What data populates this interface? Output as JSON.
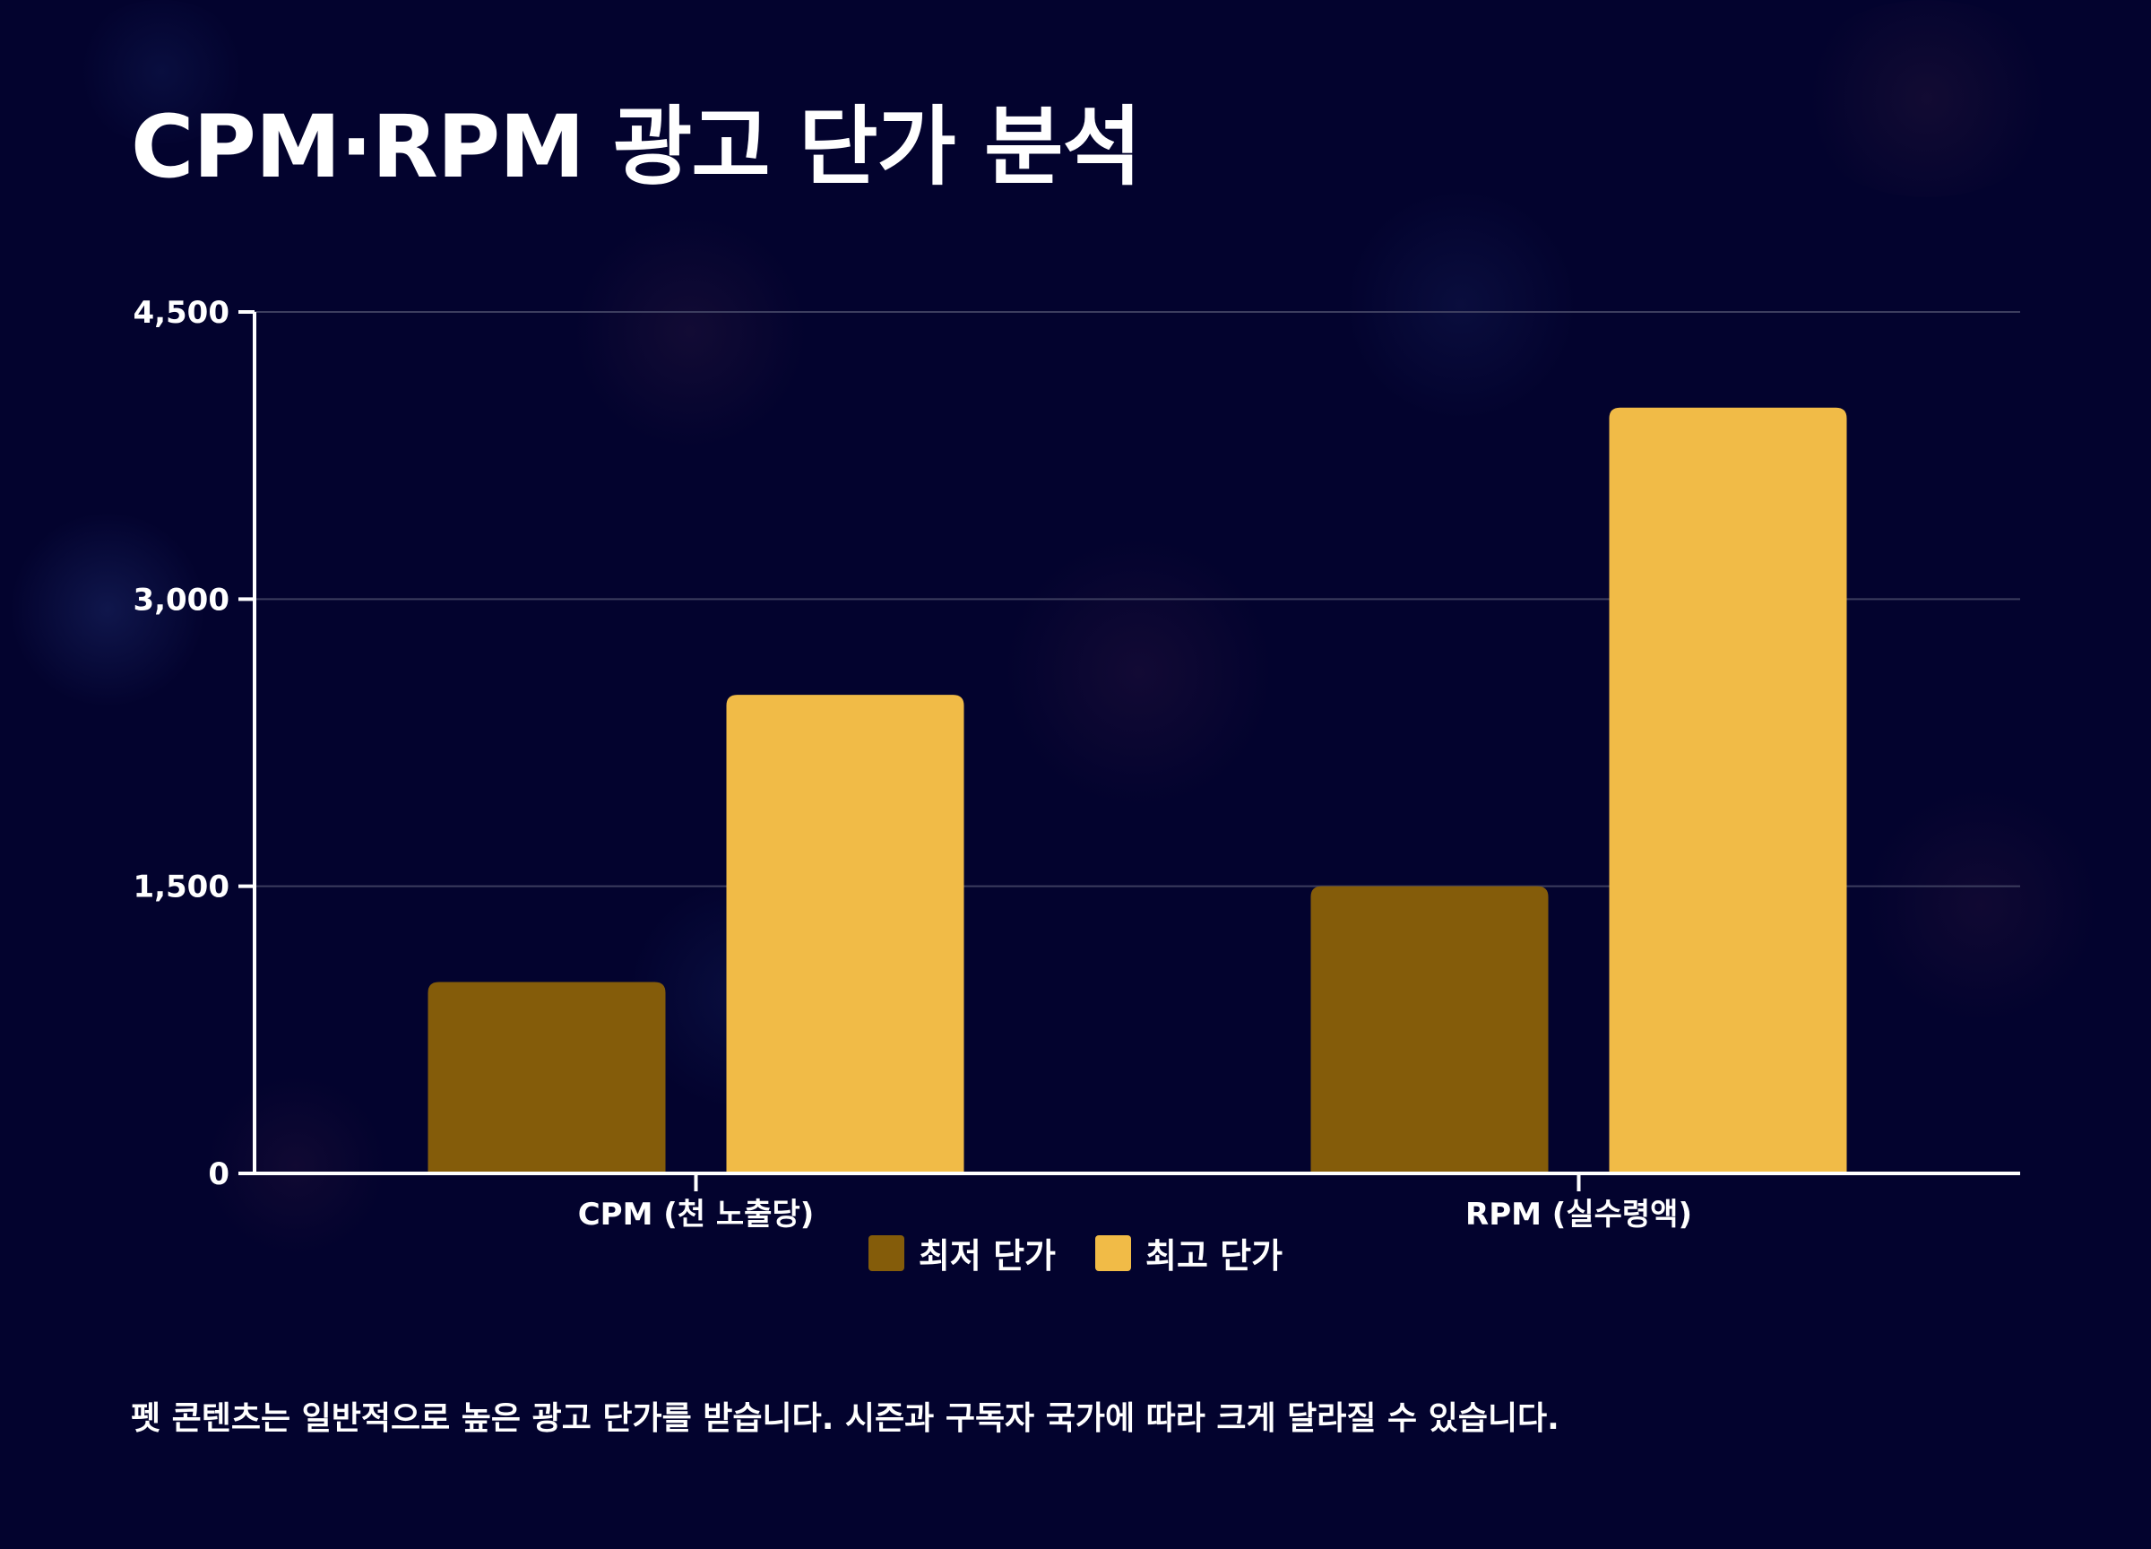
{
  "page": {
    "title": "CPM·RPM 광고 단가 분석",
    "footnote": "펫 콘텐츠는 일반적으로 높은 광고 단가를 받습니다. 시즌과 구독자 국가에 따라 크게 달라질 수 있습니다."
  },
  "colors": {
    "background": "#03032e",
    "text": "#ffffff",
    "gridline": "#3c3d5e"
  },
  "chart_data": {
    "type": "bar",
    "title": "CPM·RPM 광고 단가 분석",
    "xlabel": "",
    "ylabel": "",
    "categories": [
      "CPM (천 노출당)",
      "RPM (실수령액)"
    ],
    "series": [
      {
        "name": "최저 단가",
        "values": [
          1000,
          1500
        ],
        "color": "#845c0a"
      },
      {
        "name": "최고 단가",
        "values": [
          2500,
          4000
        ],
        "color": "#f1bb47"
      }
    ],
    "ylim": [
      0,
      4500
    ],
    "yticks": [
      0,
      1500,
      3000,
      4500
    ],
    "ytick_labels": [
      "0",
      "1,500",
      "3,000",
      "4,500"
    ],
    "grid": true,
    "legend_position": "bottom-center"
  }
}
